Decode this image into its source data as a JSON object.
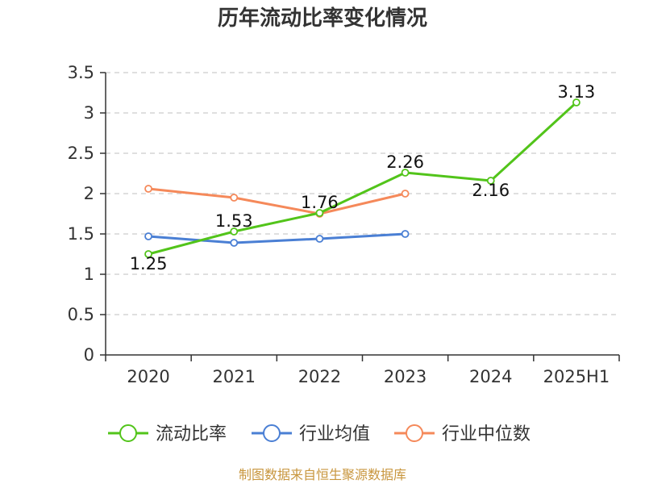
{
  "chart_data": {
    "type": "line",
    "title": "历年流动比率变化情况",
    "categories": [
      "2020",
      "2021",
      "2022",
      "2023",
      "2024",
      "2025H1"
    ],
    "ylim": [
      0,
      3.5
    ],
    "yticks": [
      "0",
      "0.5",
      "1",
      "1.5",
      "2",
      "2.5",
      "3",
      "3.5"
    ],
    "grid": true,
    "legend_position": "bottom",
    "series": [
      {
        "name": "流动比率",
        "color": "#52c41a",
        "values": [
          1.25,
          1.53,
          1.76,
          2.26,
          2.16,
          3.13
        ],
        "labels": [
          "1.25",
          "1.53",
          "1.76",
          "2.26",
          "2.16",
          "3.13"
        ]
      },
      {
        "name": "行业均值",
        "color": "#4a7fd4",
        "values": [
          1.47,
          1.39,
          1.44,
          1.5,
          null,
          null
        ]
      },
      {
        "name": "行业中位数",
        "color": "#f5895a",
        "values": [
          2.06,
          1.95,
          1.75,
          2.0,
          null,
          null
        ]
      }
    ],
    "source": "制图数据来自恒生聚源数据库"
  }
}
